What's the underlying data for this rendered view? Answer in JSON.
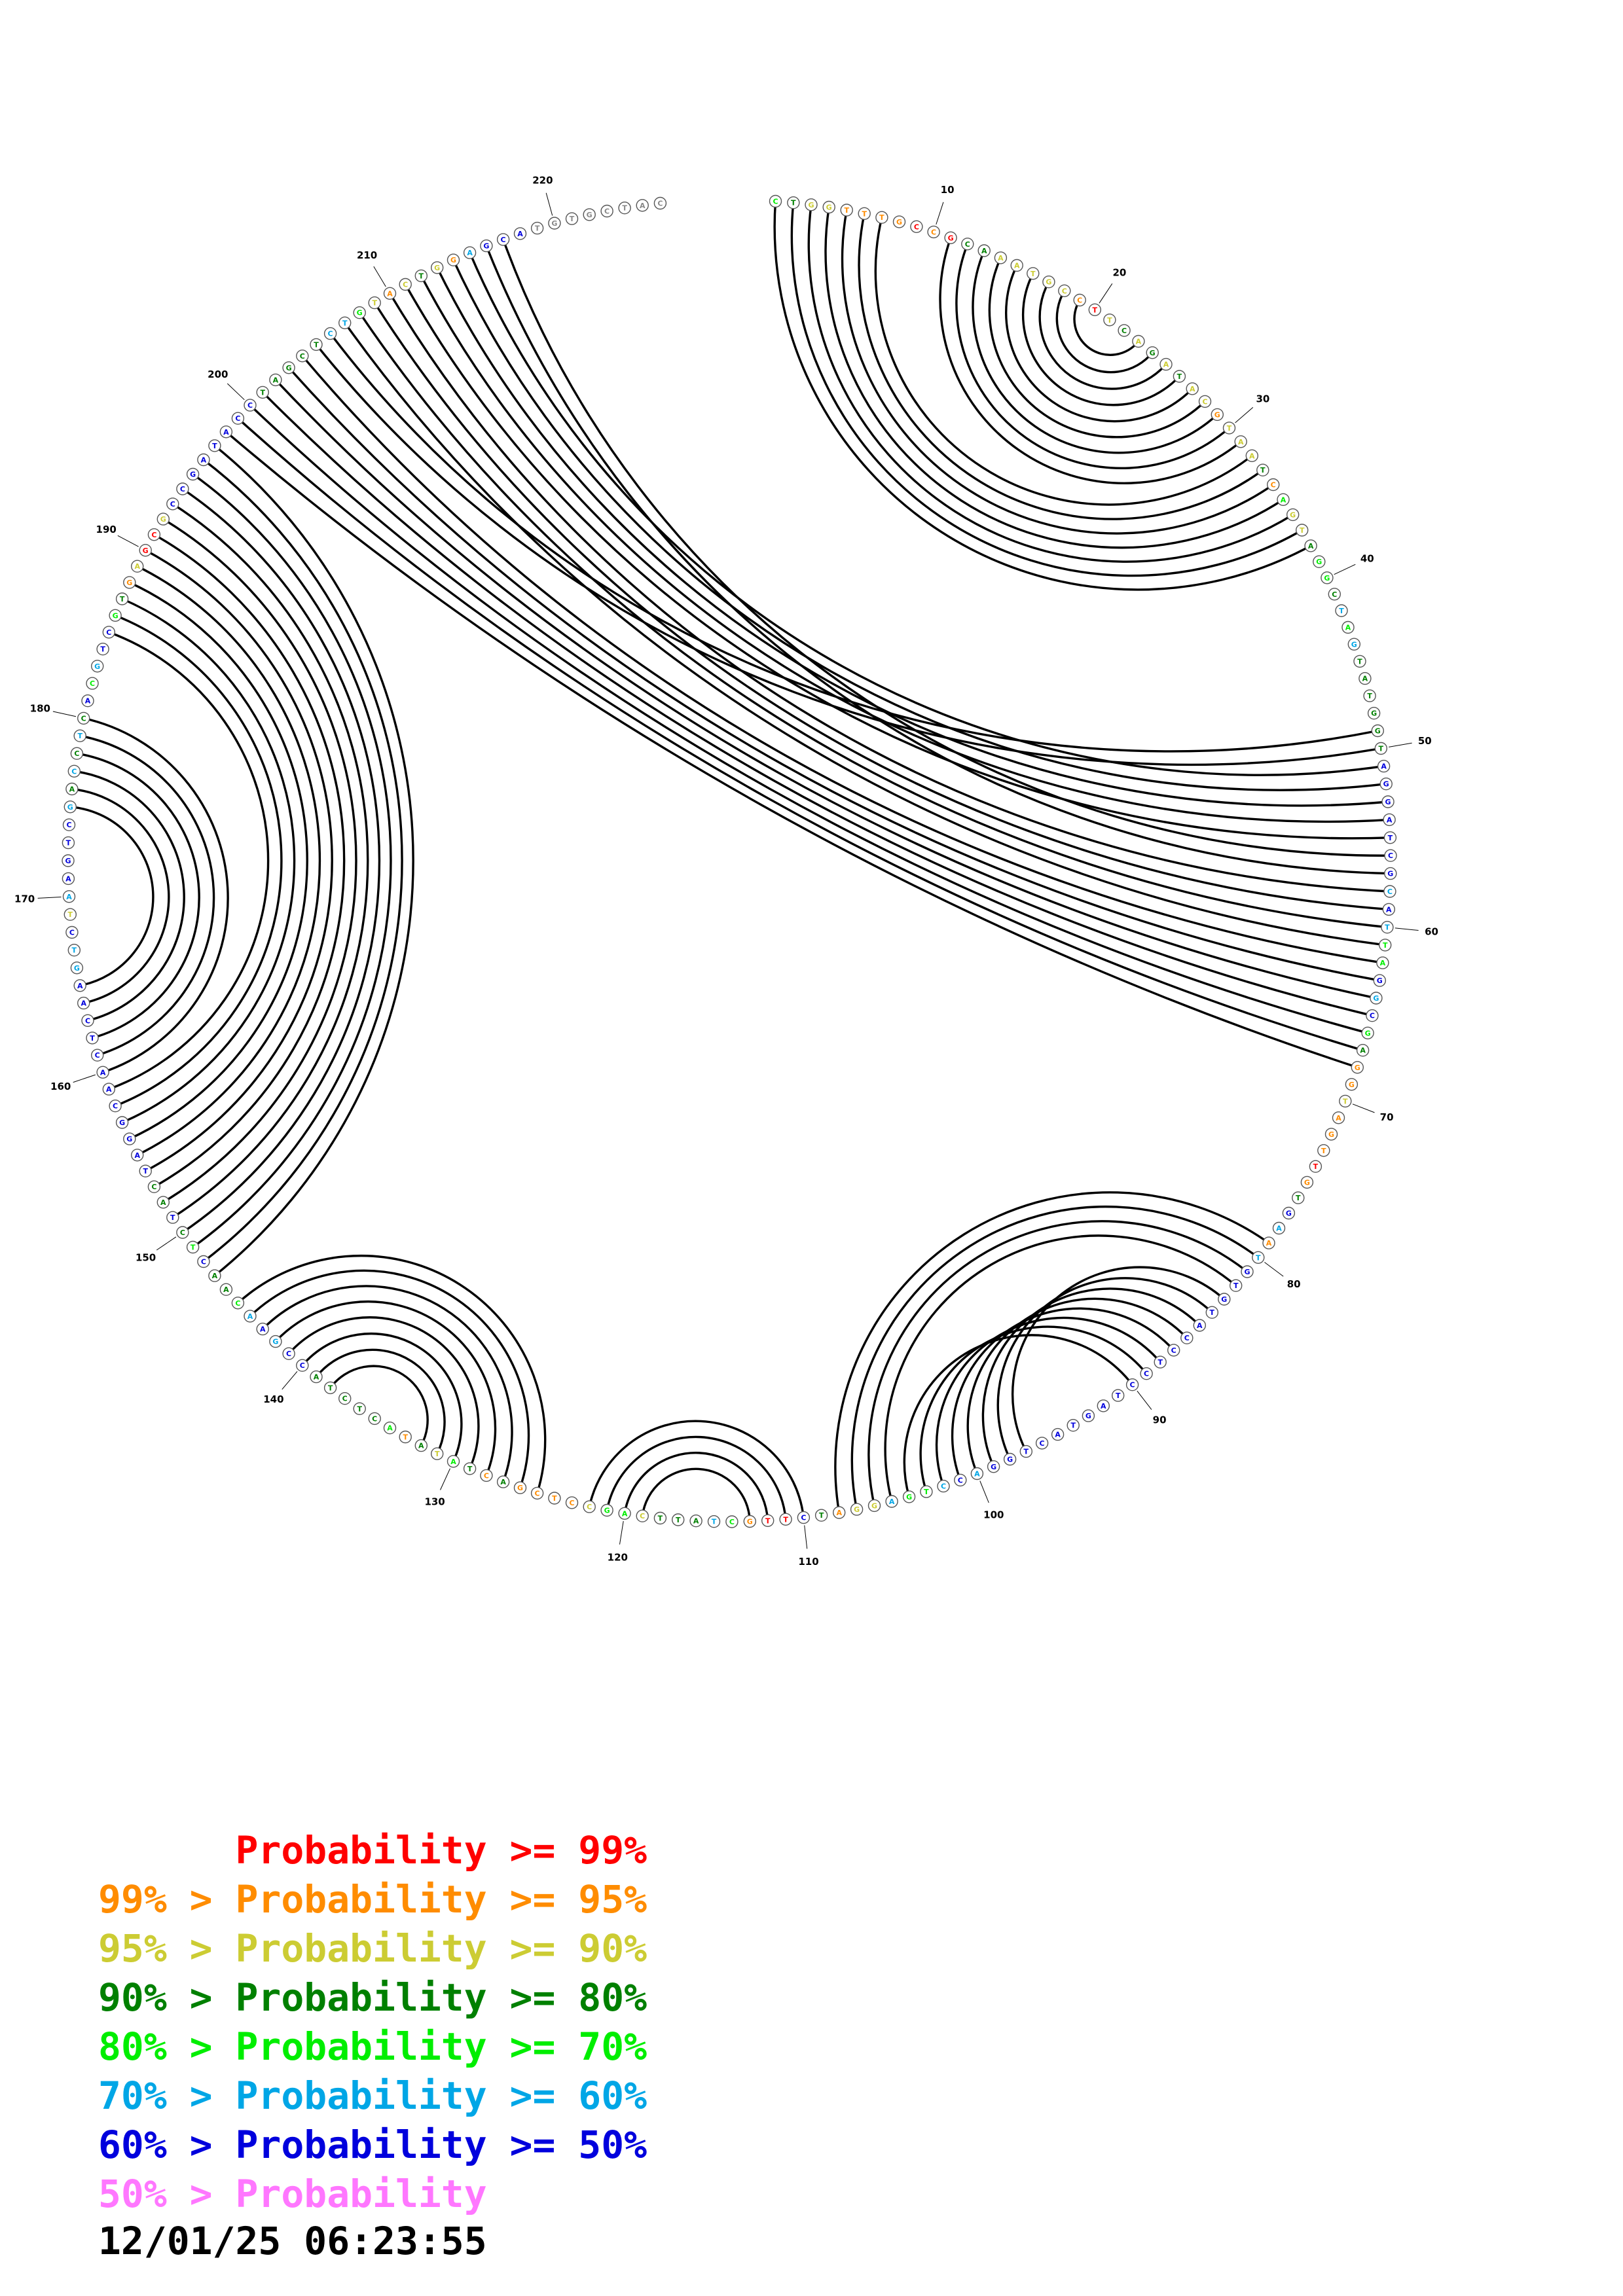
{
  "sequence": "CTGGTTTGCCGCAAATGCCTTCAGATACGTAATCAGTAGGCTAGTATGGTAGGATCGCATTAGGCGAGGTAGTTGTGAATGTGTACCTCCTAGTACTGGACCTGAGGATCTTGCTATTCAGCCTCGACTATATACTCTACCGAACAACTCTACTAGGCAACTCAAGTCTAAGTCGACCTCACGTCGTGAGCGCCGATACCTAGCTCTGTACTGGAGCATGTGCTAC",
  "base_classes": "54332222121443333321343434332333425334554656444444777777767655767542232221247626777777777777777777767655633247112564443553222242453425444447767654475474477777777777766736777764646475677542311377777777444446653234326777",
  "tick_labels": [
    "10",
    "20",
    "30",
    "40",
    "50",
    "60",
    "70",
    "80",
    "90",
    "100",
    "110",
    "120",
    "130",
    "140",
    "150",
    "160",
    "170",
    "180",
    "190",
    "200",
    "210",
    "220"
  ],
  "arcs": [
    [
      11,
      31
    ],
    [
      12,
      30
    ],
    [
      13,
      29
    ],
    [
      14,
      28
    ],
    [
      15,
      27
    ],
    [
      16,
      26
    ],
    [
      17,
      25
    ],
    [
      18,
      24
    ],
    [
      19,
      23
    ],
    [
      1,
      38
    ],
    [
      2,
      37
    ],
    [
      3,
      36
    ],
    [
      4,
      35
    ],
    [
      5,
      34
    ],
    [
      6,
      33
    ],
    [
      7,
      32
    ],
    [
      205,
      50
    ],
    [
      206,
      49
    ],
    [
      211,
      55
    ],
    [
      212,
      54
    ],
    [
      213,
      53
    ],
    [
      214,
      52
    ],
    [
      215,
      51
    ],
    [
      198,
      68
    ],
    [
      199,
      67
    ],
    [
      200,
      66
    ],
    [
      201,
      65
    ],
    [
      202,
      64
    ],
    [
      203,
      63
    ],
    [
      204,
      62
    ],
    [
      207,
      61
    ],
    [
      208,
      60
    ],
    [
      209,
      59
    ],
    [
      210,
      58
    ],
    [
      216,
      57
    ],
    [
      217,
      56
    ],
    [
      185,
      159
    ],
    [
      186,
      158
    ],
    [
      187,
      157
    ],
    [
      188,
      156
    ],
    [
      189,
      155
    ],
    [
      190,
      154
    ],
    [
      191,
      153
    ],
    [
      192,
      152
    ],
    [
      193,
      151
    ],
    [
      194,
      150
    ],
    [
      195,
      149
    ],
    [
      196,
      148
    ],
    [
      197,
      147
    ],
    [
      175,
      165
    ],
    [
      176,
      164
    ],
    [
      177,
      163
    ],
    [
      178,
      162
    ],
    [
      179,
      161
    ],
    [
      180,
      160
    ],
    [
      97,
      83
    ],
    [
      98,
      84
    ],
    [
      99,
      85
    ],
    [
      100,
      86
    ],
    [
      101,
      87
    ],
    [
      102,
      88
    ],
    [
      103,
      89
    ],
    [
      104,
      90
    ],
    [
      105,
      82
    ],
    [
      106,
      81
    ],
    [
      107,
      80
    ],
    [
      108,
      79
    ],
    [
      110,
      122
    ],
    [
      111,
      121
    ],
    [
      112,
      120
    ],
    [
      113,
      119
    ],
    [
      125,
      145
    ],
    [
      126,
      144
    ],
    [
      127,
      143
    ],
    [
      128,
      142
    ],
    [
      129,
      141
    ],
    [
      130,
      140
    ],
    [
      131,
      139
    ],
    [
      132,
      138
    ]
  ],
  "colors": {
    "1": "#ff0000",
    "2": "#ff8c00",
    "3": "#cccc33",
    "4": "#008000",
    "5": "#00ee00",
    "6": "#00a6e6",
    "7": "#0000dd",
    "8": "#ff77ff"
  },
  "legend": [
    {
      "text": "      Probability >= 99%",
      "color": "#ff0000"
    },
    {
      "text": "99% > Probability >= 95%",
      "color": "#ff8c00"
    },
    {
      "text": "95% > Probability >= 90%",
      "color": "#cccc33"
    },
    {
      "text": "90% > Probability >= 80%",
      "color": "#008000"
    },
    {
      "text": "80% > Probability >= 70%",
      "color": "#00ee00"
    },
    {
      "text": "70% > Probability >= 60%",
      "color": "#00a6e6"
    },
    {
      "text": "60% > Probability >= 50%",
      "color": "#0000dd"
    },
    {
      "text": "50% > Probability",
      "color": "#ff77ff"
    }
  ],
  "timestamp": "12/01/25 06:23:55"
}
